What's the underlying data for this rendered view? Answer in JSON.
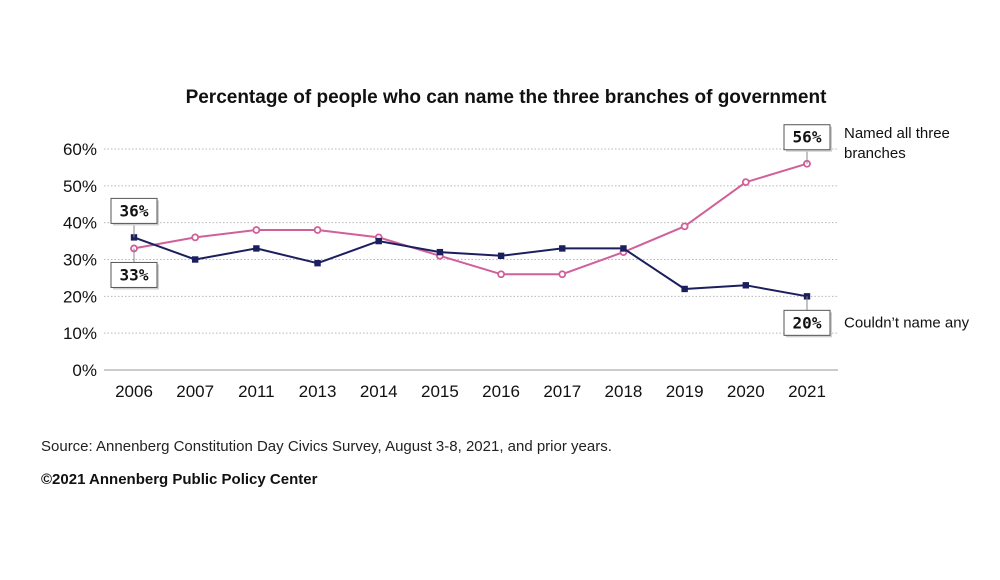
{
  "chart_data": {
    "type": "line",
    "title": "Percentage of people who can name the three branches of government",
    "categories": [
      "2006",
      "2007",
      "2011",
      "2013",
      "2014",
      "2015",
      "2016",
      "2017",
      "2018",
      "2019",
      "2020",
      "2021"
    ],
    "series": [
      {
        "name": "Named all three branches",
        "label_lines": [
          "Named all three",
          "branches"
        ],
        "color": "#d0609a",
        "marker": "circle",
        "values": [
          33,
          36,
          38,
          38,
          36,
          31,
          26,
          26,
          32,
          39,
          51,
          56
        ]
      },
      {
        "name": "Couldn’t name any",
        "label_lines": [
          "Couldn’t name any"
        ],
        "color": "#1b1f5e",
        "marker": "square",
        "values": [
          36,
          30,
          33,
          29,
          35,
          32,
          31,
          33,
          33,
          22,
          23,
          20
        ]
      }
    ],
    "yticks": [
      "0%",
      "10%",
      "20%",
      "30%",
      "40%",
      "50%",
      "60%"
    ],
    "ylim": [
      0,
      60
    ],
    "grid": "horizontal dotted",
    "callouts": [
      {
        "text": "36%",
        "series": 1,
        "index": 0,
        "placement": "above"
      },
      {
        "text": "33%",
        "series": 0,
        "index": 0,
        "placement": "below"
      },
      {
        "text": "56%",
        "series": 0,
        "index": 11,
        "placement": "above"
      },
      {
        "text": "20%",
        "series": 1,
        "index": 11,
        "placement": "below"
      }
    ]
  },
  "footer": {
    "source": "Source: Annenberg Constitution Day Civics Survey, August 3-8, 2021, and prior years.",
    "copyright": "©2021 Annenberg Public Policy Center"
  }
}
